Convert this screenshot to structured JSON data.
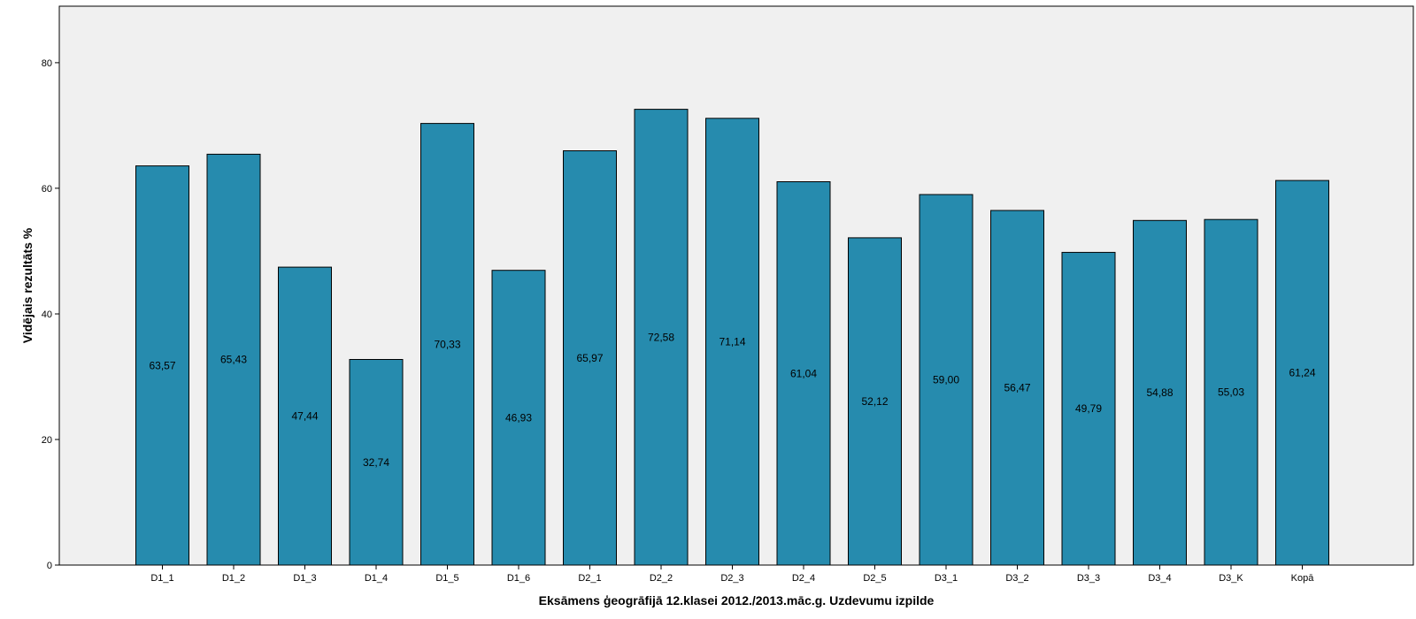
{
  "chart_data": {
    "type": "bar",
    "title": "",
    "xlabel": "Eksāmens ģeogrāfijā 12.klasei 2012./2013.māc.g. Uzdevumu izpilde",
    "ylabel": "Vidējais rezultāts %",
    "categories": [
      "D1_1",
      "D1_2",
      "D1_3",
      "D1_4",
      "D1_5",
      "D1_6",
      "D2_1",
      "D2_2",
      "D2_3",
      "D2_4",
      "D2_5",
      "D3_1",
      "D3_2",
      "D3_3",
      "D3_4",
      "D3_K",
      "Kopā"
    ],
    "values": [
      63.57,
      65.43,
      47.44,
      32.74,
      70.33,
      46.93,
      65.97,
      72.58,
      71.14,
      61.04,
      52.12,
      59.0,
      56.47,
      49.79,
      54.88,
      55.03,
      61.24
    ],
    "data_labels": [
      "63,57",
      "65,43",
      "47,44",
      "32,74",
      "70,33",
      "46,93",
      "65,97",
      "72,58",
      "71,14",
      "61,04",
      "52,12",
      "59,00",
      "56,47",
      "49,79",
      "54,88",
      "55,03",
      "61,24"
    ],
    "ylim": [
      0,
      89
    ],
    "yticks": [
      0,
      20,
      40,
      60,
      80
    ],
    "grid": false,
    "legend": "none",
    "colors": {
      "bar": "#268bae",
      "bar_outline": "#000000",
      "plot_background": "#f0f0f0"
    }
  }
}
